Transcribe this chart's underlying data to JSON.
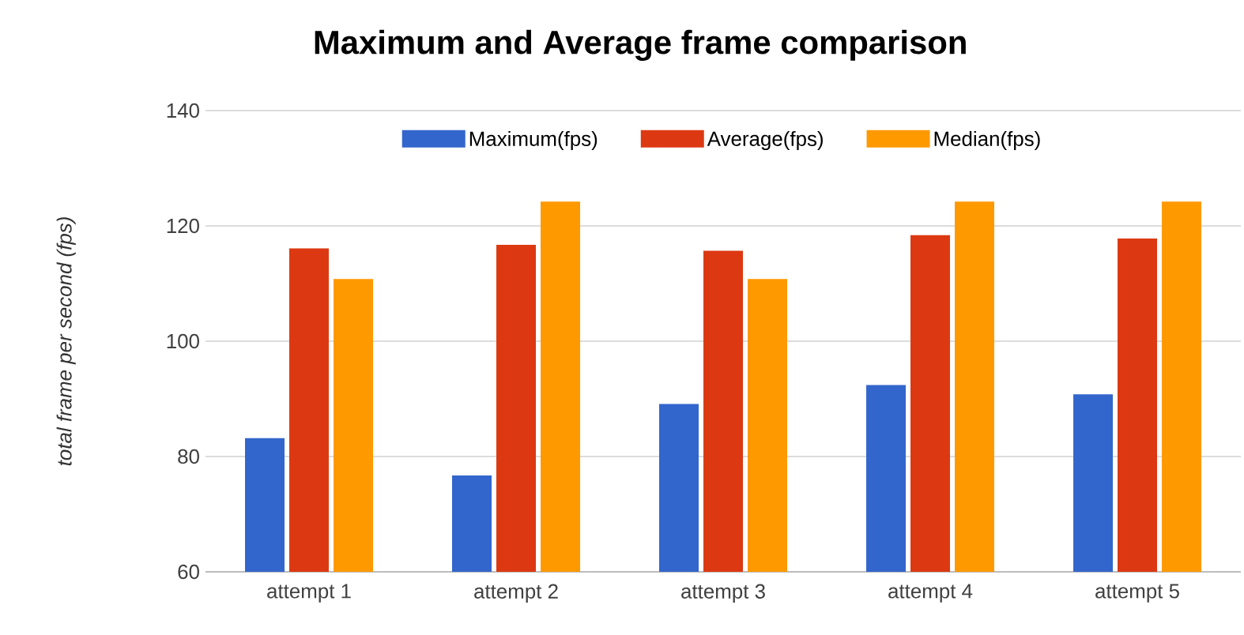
{
  "chart_data": {
    "type": "bar",
    "title": "Maximum and Average frame comparison",
    "ylabel": "total frame per second (fps)",
    "categories": [
      "attempt 1",
      "attempt 2",
      "attempt 3",
      "attempt 4",
      "attempt 5"
    ],
    "series": [
      {
        "name": "Maximum(fps)",
        "color": "#3366cc",
        "values": [
          83.2,
          76.7,
          89.1,
          92.4,
          90.8
        ]
      },
      {
        "name": "Average(fps)",
        "color": "#dc3912",
        "values": [
          116.1,
          116.7,
          115.7,
          118.4,
          117.8
        ]
      },
      {
        "name": "Median(fps)",
        "color": "#ff9900",
        "values": [
          110.8,
          124.2,
          110.8,
          124.2,
          124.2
        ]
      }
    ],
    "ylim": [
      60,
      140
    ],
    "yticks": [
      60,
      80,
      100,
      120,
      140
    ],
    "grid": "y",
    "legend": "top"
  }
}
